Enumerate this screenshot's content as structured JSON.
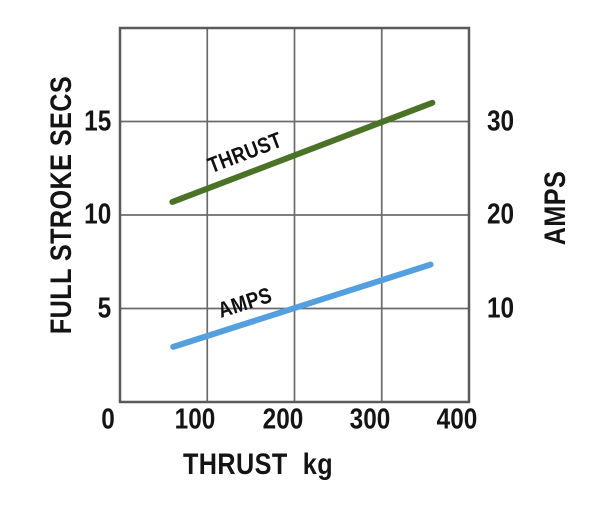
{
  "figure": {
    "background": "#ffffff",
    "text_color": "#141414",
    "grid_color": "#6b6b6b",
    "border_color": "#5a5a5a"
  },
  "chart_data": {
    "type": "line",
    "title": "",
    "xlabel": "THRUST",
    "x_unit": "kg",
    "ylabel_left": "FULL STROKE SECS",
    "ylabel_right": "AMPS",
    "x_range": [
      0,
      400
    ],
    "x_ticks": [
      0,
      100,
      200,
      300,
      400
    ],
    "y_left_range": [
      0,
      20
    ],
    "y_left_ticks": [
      5,
      10,
      15
    ],
    "y_right_range": [
      0,
      40
    ],
    "y_right_ticks": [
      10,
      20,
      30
    ],
    "grid": true,
    "legend": "inline-line-labels",
    "series": [
      {
        "name": "THRUST",
        "axis": "left",
        "units": "full stroke secs",
        "color": "#4a7328",
        "points": [
          {
            "x": 60,
            "y": 10.7
          },
          {
            "x": 358,
            "y": 16.0
          }
        ]
      },
      {
        "name": "AMPS",
        "axis": "right",
        "units": "amps",
        "color": "#539fe0",
        "points": [
          {
            "x": 61,
            "y": 5.9
          },
          {
            "x": 356,
            "y": 14.7
          }
        ]
      }
    ]
  }
}
